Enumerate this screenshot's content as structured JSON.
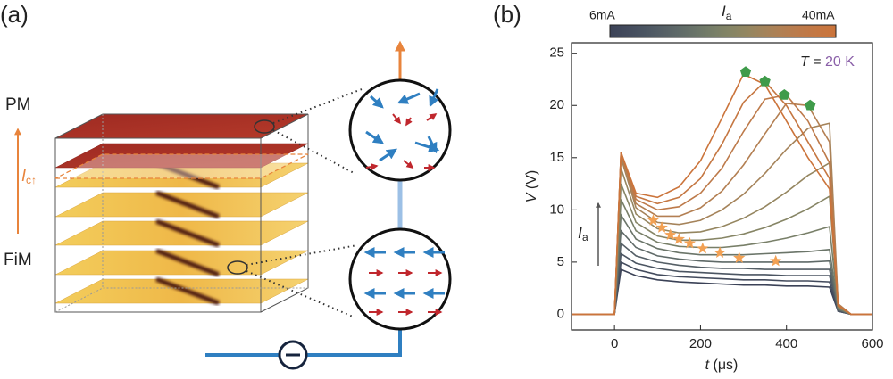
{
  "panel_a": {
    "label": "(a)",
    "top_phase": "PM",
    "bottom_phase": "FiM",
    "threshold_label": {
      "main": "I",
      "sub": "c↑"
    }
  },
  "chart_data": {
    "type": "line",
    "panel_label": "(b)",
    "colorbar": {
      "min_label": "6mA",
      "max_label": "40mA",
      "title": {
        "main": "I",
        "sub": "a"
      }
    },
    "current_arrow_label": {
      "main": "I",
      "sub": "a"
    },
    "temperature_label": {
      "symbol": "T",
      "equals": " = ",
      "value": "20 K",
      "value_color": "#8a5fa8"
    },
    "x_label": {
      "symbol": "t",
      "unit": " (μs)"
    },
    "y_label": {
      "symbol": "V",
      "unit": " (V)"
    },
    "xlim": [
      -100,
      600
    ],
    "xticks": [
      0,
      200,
      400,
      600
    ],
    "ylim": [
      -1.5,
      26
    ],
    "yticks": [
      0,
      5,
      10,
      15,
      20,
      25
    ],
    "x": [
      -100,
      0,
      15,
      50,
      100,
      150,
      200,
      250,
      300,
      350,
      400,
      450,
      500,
      520,
      550,
      600
    ],
    "series": [
      {
        "color": "#3b4257",
        "values": [
          0,
          0,
          4.3,
          3.7,
          3.3,
          3.1,
          3.0,
          2.9,
          2.8,
          2.8,
          2.7,
          2.7,
          2.6,
          0.3,
          0,
          0
        ]
      },
      {
        "color": "#434b5d",
        "values": [
          0,
          0,
          5.0,
          4.3,
          3.8,
          3.6,
          3.5,
          3.4,
          3.3,
          3.3,
          3.2,
          3.2,
          3.1,
          0.3,
          0,
          0
        ]
      },
      {
        "color": "#4b5562",
        "values": [
          0,
          0,
          5.8,
          4.9,
          4.4,
          4.1,
          4.0,
          3.9,
          3.8,
          3.8,
          3.7,
          3.7,
          3.7,
          0.4,
          0,
          0
        ]
      },
      {
        "color": "#555f66",
        "values": [
          0,
          0,
          6.8,
          5.6,
          5.0,
          4.7,
          4.5,
          4.4,
          4.4,
          4.3,
          4.3,
          4.3,
          4.3,
          0.4,
          0,
          0
        ]
      },
      {
        "color": "#5f6a68",
        "values": [
          0,
          0,
          8.0,
          6.4,
          5.6,
          5.3,
          5.1,
          5.0,
          5.0,
          5.0,
          5.0,
          5.0,
          5.1,
          0.5,
          0,
          0
        ]
      },
      {
        "color": "#6b7569",
        "values": [
          0,
          0,
          9.5,
          7.2,
          6.3,
          5.9,
          5.7,
          5.7,
          5.7,
          5.8,
          5.9,
          6.0,
          6.2,
          0.5,
          0,
          0
        ]
      },
      {
        "color": "#787f68",
        "values": [
          0,
          0,
          11,
          8.0,
          6.9,
          6.5,
          6.4,
          6.4,
          6.6,
          6.9,
          7.3,
          7.8,
          8.4,
          0.6,
          0,
          0
        ]
      },
      {
        "color": "#868565",
        "values": [
          0,
          0,
          12.5,
          8.8,
          7.5,
          7.1,
          7.1,
          7.3,
          7.7,
          8.3,
          9.1,
          10.1,
          11.3,
          0.7,
          0,
          0
        ]
      },
      {
        "color": "#958660",
        "values": [
          0,
          0,
          14,
          9.6,
          8.2,
          7.8,
          7.9,
          8.4,
          9.2,
          10.3,
          11.7,
          13.3,
          14.5,
          0.8,
          0,
          0
        ]
      },
      {
        "color": "#a5835a",
        "values": [
          0,
          0,
          15,
          10.2,
          8.8,
          8.6,
          9.0,
          10.0,
          11.5,
          13.5,
          15.8,
          17.8,
          18.3,
          1.0,
          0,
          0
        ]
      },
      {
        "color": "#b37f52",
        "values": [
          0,
          0,
          15.4,
          10.6,
          9.4,
          9.4,
          10.2,
          11.8,
          14.3,
          17.3,
          20.2,
          20.0,
          16.5,
          1.0,
          0,
          0
        ]
      },
      {
        "color": "#bd7a4a",
        "values": [
          0,
          0,
          15.5,
          11.0,
          10.0,
          10.3,
          11.6,
          14.0,
          17.5,
          20.6,
          21.0,
          18.5,
          14.5,
          0.9,
          0,
          0
        ]
      },
      {
        "color": "#c57742",
        "values": [
          0,
          0,
          15.5,
          11.3,
          10.6,
          11.2,
          13.0,
          16.3,
          20.3,
          22.3,
          20.0,
          16.5,
          13.0,
          0.9,
          0,
          0
        ]
      },
      {
        "color": "#cb743b",
        "values": [
          0,
          0,
          15.5,
          11.6,
          11.2,
          12.2,
          14.7,
          18.8,
          23.0,
          22.0,
          18.5,
          15.0,
          12.0,
          0.8,
          0,
          0
        ]
      }
    ],
    "star_points": {
      "color": "#f2a154",
      "x": [
        90,
        110,
        130,
        150,
        175,
        205,
        245,
        290,
        375
      ],
      "y": [
        9,
        8.3,
        7.6,
        7.2,
        6.8,
        6.3,
        5.9,
        5.4,
        5.1
      ]
    },
    "peak_points": {
      "color": "#3f9b4a",
      "x": [
        305,
        350,
        395,
        455
      ],
      "y": [
        23.2,
        22.3,
        21,
        20
      ]
    }
  }
}
